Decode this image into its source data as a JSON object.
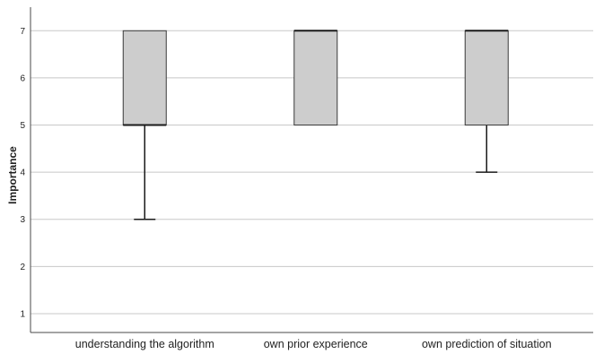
{
  "chart_data": {
    "type": "boxplot",
    "ylabel": "Importance",
    "ylim": [
      0.6,
      7.5
    ],
    "yticks": [
      1,
      2,
      3,
      4,
      5,
      6,
      7
    ],
    "grid": true,
    "categories": [
      "understanding the algorithm",
      "own prior experience",
      "own prediction of situation"
    ],
    "boxes": [
      {
        "min": 3,
        "q1": 5,
        "median": 5,
        "q3": 7,
        "max": 7
      },
      {
        "min": 5,
        "q1": 5,
        "median": 7,
        "q3": 7,
        "max": 7
      },
      {
        "min": 4,
        "q1": 5,
        "median": 7,
        "q3": 7,
        "max": 7
      }
    ]
  }
}
